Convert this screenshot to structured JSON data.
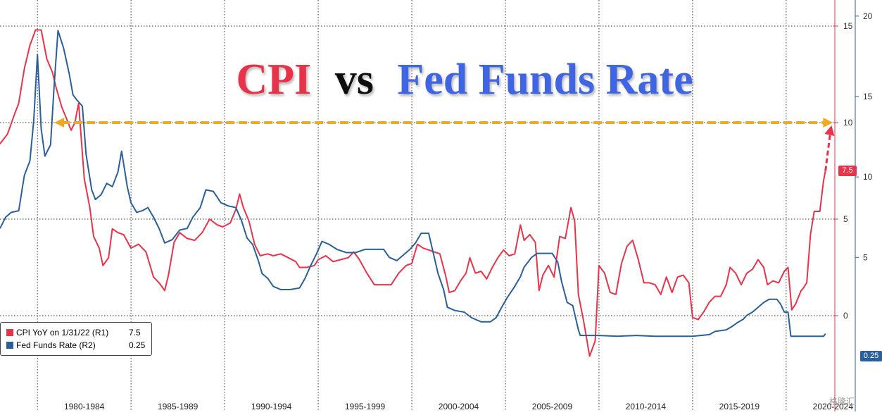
{
  "chart_data": {
    "type": "line",
    "title": {
      "part1": "CPI",
      "part2": "vs",
      "part3": "Fed Funds Rate"
    },
    "x_range": [
      1978.0,
      2022.6
    ],
    "x_tick_labels": [
      "1980-1984",
      "1985-1989",
      "1990-1994",
      "1995-1999",
      "2000-2004",
      "2005-2009",
      "2010-2014",
      "2015-2019",
      "2020-2024"
    ],
    "y_axis_r1": {
      "ticks": [
        0,
        5,
        10,
        15
      ],
      "ylim": [
        -3.65,
        16.35
      ],
      "label_side": "inner"
    },
    "y_axis_r2": {
      "ticks": [
        5,
        10,
        15,
        20
      ],
      "ylim": [
        -3,
        21
      ],
      "label_side": "outer"
    },
    "series": [
      {
        "name": "CPI YoY on 1/31/22 (R1)",
        "last_value": "7.5",
        "axis": "R1",
        "color": "#e8334a",
        "points": [
          [
            1978.0,
            8.9
          ],
          [
            1978.4,
            9.4
          ],
          [
            1978.8,
            10.5
          ],
          [
            1979.0,
            11.0
          ],
          [
            1979.3,
            12.8
          ],
          [
            1979.6,
            14.0
          ],
          [
            1979.9,
            14.8
          ],
          [
            1980.2,
            14.8
          ],
          [
            1980.5,
            13.3
          ],
          [
            1980.8,
            12.6
          ],
          [
            1981.0,
            11.8
          ],
          [
            1981.3,
            10.8
          ],
          [
            1981.6,
            10.1
          ],
          [
            1981.8,
            9.6
          ],
          [
            1982.0,
            10.0
          ],
          [
            1982.2,
            11.0
          ],
          [
            1982.5,
            7.1
          ],
          [
            1982.8,
            5.6
          ],
          [
            1983.0,
            4.1
          ],
          [
            1983.3,
            3.5
          ],
          [
            1983.5,
            2.6
          ],
          [
            1983.8,
            3.0
          ],
          [
            1984.0,
            4.5
          ],
          [
            1984.3,
            4.3
          ],
          [
            1984.6,
            4.2
          ],
          [
            1985.0,
            3.5
          ],
          [
            1985.4,
            3.7
          ],
          [
            1985.8,
            3.3
          ],
          [
            1986.2,
            2.0
          ],
          [
            1986.5,
            1.7
          ],
          [
            1986.8,
            1.3
          ],
          [
            1987.0,
            2.1
          ],
          [
            1987.3,
            3.8
          ],
          [
            1987.6,
            4.3
          ],
          [
            1988.0,
            4.0
          ],
          [
            1988.4,
            3.9
          ],
          [
            1988.8,
            4.3
          ],
          [
            1989.2,
            5.0
          ],
          [
            1989.6,
            4.7
          ],
          [
            1989.9,
            4.6
          ],
          [
            1990.3,
            4.8
          ],
          [
            1990.6,
            5.5
          ],
          [
            1990.8,
            6.3
          ],
          [
            1991.0,
            5.6
          ],
          [
            1991.3,
            4.9
          ],
          [
            1991.6,
            3.7
          ],
          [
            1991.9,
            3.1
          ],
          [
            1992.3,
            3.2
          ],
          [
            1992.6,
            3.1
          ],
          [
            1993.0,
            3.2
          ],
          [
            1993.4,
            3.0
          ],
          [
            1993.8,
            2.8
          ],
          [
            1994.0,
            2.5
          ],
          [
            1994.4,
            2.5
          ],
          [
            1994.8,
            2.6
          ],
          [
            1995.0,
            2.9
          ],
          [
            1995.4,
            3.1
          ],
          [
            1995.8,
            2.8
          ],
          [
            1996.2,
            2.9
          ],
          [
            1996.6,
            3.0
          ],
          [
            1996.9,
            3.3
          ],
          [
            1997.2,
            2.9
          ],
          [
            1997.6,
            2.2
          ],
          [
            1998.0,
            1.6
          ],
          [
            1998.5,
            1.6
          ],
          [
            1998.9,
            1.6
          ],
          [
            1999.3,
            2.2
          ],
          [
            1999.7,
            2.6
          ],
          [
            2000.0,
            2.7
          ],
          [
            2000.3,
            3.7
          ],
          [
            2000.6,
            3.5
          ],
          [
            2000.9,
            3.4
          ],
          [
            2001.2,
            3.3
          ],
          [
            2001.5,
            3.2
          ],
          [
            2001.8,
            2.1
          ],
          [
            2002.0,
            1.2
          ],
          [
            2002.3,
            1.3
          ],
          [
            2002.6,
            1.8
          ],
          [
            2002.9,
            2.2
          ],
          [
            2003.1,
            3.0
          ],
          [
            2003.4,
            2.2
          ],
          [
            2003.7,
            2.3
          ],
          [
            2004.0,
            1.9
          ],
          [
            2004.3,
            2.5
          ],
          [
            2004.6,
            3.0
          ],
          [
            2004.9,
            3.4
          ],
          [
            2005.2,
            3.1
          ],
          [
            2005.5,
            3.2
          ],
          [
            2005.8,
            4.7
          ],
          [
            2006.0,
            3.9
          ],
          [
            2006.3,
            4.2
          ],
          [
            2006.6,
            3.8
          ],
          [
            2006.8,
            1.3
          ],
          [
            2007.0,
            2.1
          ],
          [
            2007.3,
            2.6
          ],
          [
            2007.6,
            2.0
          ],
          [
            2007.9,
            4.1
          ],
          [
            2008.2,
            4.0
          ],
          [
            2008.5,
            5.6
          ],
          [
            2008.7,
            4.9
          ],
          [
            2008.9,
            1.1
          ],
          [
            2009.2,
            -0.4
          ],
          [
            2009.5,
            -2.1
          ],
          [
            2009.8,
            -1.3
          ],
          [
            2010.0,
            2.6
          ],
          [
            2010.3,
            2.2
          ],
          [
            2010.6,
            1.2
          ],
          [
            2010.9,
            1.1
          ],
          [
            2011.2,
            2.7
          ],
          [
            2011.5,
            3.6
          ],
          [
            2011.8,
            3.9
          ],
          [
            2012.1,
            2.9
          ],
          [
            2012.4,
            1.7
          ],
          [
            2012.7,
            1.7
          ],
          [
            2013.0,
            1.6
          ],
          [
            2013.3,
            1.1
          ],
          [
            2013.6,
            2.0
          ],
          [
            2013.9,
            1.2
          ],
          [
            2014.2,
            2.0
          ],
          [
            2014.5,
            2.1
          ],
          [
            2014.8,
            1.7
          ],
          [
            2015.0,
            -0.1
          ],
          [
            2015.3,
            -0.2
          ],
          [
            2015.6,
            0.2
          ],
          [
            2015.9,
            0.7
          ],
          [
            2016.2,
            1.0
          ],
          [
            2016.5,
            1.0
          ],
          [
            2016.8,
            1.6
          ],
          [
            2017.0,
            2.5
          ],
          [
            2017.3,
            2.2
          ],
          [
            2017.6,
            1.6
          ],
          [
            2017.9,
            2.2
          ],
          [
            2018.2,
            2.4
          ],
          [
            2018.5,
            2.9
          ],
          [
            2018.8,
            2.5
          ],
          [
            2019.0,
            1.6
          ],
          [
            2019.3,
            1.8
          ],
          [
            2019.6,
            1.7
          ],
          [
            2019.9,
            2.3
          ],
          [
            2020.1,
            2.5
          ],
          [
            2020.3,
            0.3
          ],
          [
            2020.5,
            0.6
          ],
          [
            2020.8,
            1.3
          ],
          [
            2020.9,
            1.4
          ],
          [
            2021.1,
            1.7
          ],
          [
            2021.3,
            4.2
          ],
          [
            2021.5,
            5.4
          ],
          [
            2021.8,
            5.4
          ],
          [
            2022.0,
            7.0
          ],
          [
            2022.1,
            7.5
          ]
        ]
      },
      {
        "name": "Fed Funds Rate (R2)",
        "last_value": "0.25",
        "axis": "R2",
        "color": "#2a6099",
        "points": [
          [
            1978.0,
            6.8
          ],
          [
            1978.3,
            7.5
          ],
          [
            1978.6,
            7.8
          ],
          [
            1979.0,
            7.9
          ],
          [
            1979.3,
            10.1
          ],
          [
            1979.6,
            11.0
          ],
          [
            1979.8,
            13.5
          ],
          [
            1980.0,
            17.6
          ],
          [
            1980.2,
            13.0
          ],
          [
            1980.4,
            11.3
          ],
          [
            1980.7,
            12.0
          ],
          [
            1980.9,
            15.8
          ],
          [
            1981.1,
            19.1
          ],
          [
            1981.4,
            18.0
          ],
          [
            1981.7,
            16.4
          ],
          [
            1981.9,
            15.1
          ],
          [
            1982.1,
            14.8
          ],
          [
            1982.4,
            14.4
          ],
          [
            1982.6,
            11.4
          ],
          [
            1982.9,
            9.2
          ],
          [
            1983.1,
            8.6
          ],
          [
            1983.4,
            8.9
          ],
          [
            1983.7,
            9.6
          ],
          [
            1984.0,
            9.4
          ],
          [
            1984.3,
            10.3
          ],
          [
            1984.5,
            11.6
          ],
          [
            1984.8,
            9.4
          ],
          [
            1985.0,
            8.4
          ],
          [
            1985.3,
            7.8
          ],
          [
            1985.6,
            7.9
          ],
          [
            1985.9,
            8.1
          ],
          [
            1986.2,
            7.5
          ],
          [
            1986.5,
            6.8
          ],
          [
            1986.8,
            5.9
          ],
          [
            1987.2,
            6.1
          ],
          [
            1987.6,
            6.7
          ],
          [
            1988.0,
            6.8
          ],
          [
            1988.3,
            7.5
          ],
          [
            1988.7,
            8.1
          ],
          [
            1989.0,
            9.2
          ],
          [
            1989.4,
            9.1
          ],
          [
            1989.8,
            8.4
          ],
          [
            1990.2,
            8.2
          ],
          [
            1990.6,
            8.1
          ],
          [
            1990.9,
            7.3
          ],
          [
            1991.2,
            6.2
          ],
          [
            1991.5,
            5.8
          ],
          [
            1991.8,
            4.8
          ],
          [
            1992.0,
            4.0
          ],
          [
            1992.3,
            3.7
          ],
          [
            1992.6,
            3.2
          ],
          [
            1993.0,
            3.0
          ],
          [
            1993.5,
            3.0
          ],
          [
            1994.0,
            3.1
          ],
          [
            1994.3,
            3.7
          ],
          [
            1994.6,
            4.5
          ],
          [
            1994.9,
            5.2
          ],
          [
            1995.2,
            6.0
          ],
          [
            1995.6,
            5.8
          ],
          [
            1996.0,
            5.5
          ],
          [
            1996.5,
            5.3
          ],
          [
            1997.0,
            5.3
          ],
          [
            1997.5,
            5.5
          ],
          [
            1998.0,
            5.5
          ],
          [
            1998.5,
            5.5
          ],
          [
            1998.8,
            5.0
          ],
          [
            1999.2,
            4.8
          ],
          [
            1999.6,
            5.2
          ],
          [
            1999.9,
            5.5
          ],
          [
            2000.2,
            5.9
          ],
          [
            2000.5,
            6.5
          ],
          [
            2000.9,
            6.5
          ],
          [
            2001.1,
            5.5
          ],
          [
            2001.4,
            4.0
          ],
          [
            2001.7,
            3.0
          ],
          [
            2001.9,
            1.9
          ],
          [
            2002.3,
            1.7
          ],
          [
            2002.8,
            1.6
          ],
          [
            2003.2,
            1.25
          ],
          [
            2003.7,
            1.0
          ],
          [
            2004.2,
            1.0
          ],
          [
            2004.5,
            1.25
          ],
          [
            2004.8,
            1.9
          ],
          [
            2005.1,
            2.5
          ],
          [
            2005.5,
            3.2
          ],
          [
            2005.8,
            3.8
          ],
          [
            2006.0,
            4.4
          ],
          [
            2006.4,
            5.0
          ],
          [
            2006.7,
            5.25
          ],
          [
            2007.0,
            5.25
          ],
          [
            2007.5,
            5.25
          ],
          [
            2007.8,
            4.7
          ],
          [
            2008.0,
            3.5
          ],
          [
            2008.3,
            2.2
          ],
          [
            2008.6,
            2.0
          ],
          [
            2008.9,
            0.5
          ],
          [
            2009.0,
            0.15
          ],
          [
            2009.5,
            0.15
          ],
          [
            2010.0,
            0.15
          ],
          [
            2011.0,
            0.1
          ],
          [
            2012.0,
            0.15
          ],
          [
            2013.0,
            0.1
          ],
          [
            2014.0,
            0.1
          ],
          [
            2015.0,
            0.1
          ],
          [
            2015.9,
            0.2
          ],
          [
            2016.2,
            0.4
          ],
          [
            2016.8,
            0.5
          ],
          [
            2017.1,
            0.7
          ],
          [
            2017.4,
            0.95
          ],
          [
            2017.7,
            1.15
          ],
          [
            2017.9,
            1.4
          ],
          [
            2018.2,
            1.6
          ],
          [
            2018.5,
            1.9
          ],
          [
            2018.8,
            2.2
          ],
          [
            2019.1,
            2.4
          ],
          [
            2019.5,
            2.4
          ],
          [
            2019.7,
            2.1
          ],
          [
            2019.9,
            1.6
          ],
          [
            2020.1,
            1.6
          ],
          [
            2020.25,
            0.1
          ],
          [
            2020.6,
            0.1
          ],
          [
            2021.0,
            0.1
          ],
          [
            2021.5,
            0.1
          ],
          [
            2022.0,
            0.1
          ],
          [
            2022.1,
            0.25
          ]
        ]
      }
    ],
    "annotation": {
      "type": "dashed-arrow",
      "from_x": 1980.9,
      "to_x": 2022.5,
      "y_r1": 10,
      "color": "#f2a91e",
      "up_arrow_color": "#e8334a"
    }
  },
  "legend": {
    "items": [
      {
        "label": "CPI YoY on 1/31/22 (R1)",
        "value": "7.5",
        "color": "#e8334a"
      },
      {
        "label": "Fed Funds Rate (R2)",
        "value": "0.25",
        "color": "#2a6099"
      }
    ]
  },
  "last_value_tags": {
    "cpi": "7.5",
    "ffr": "0.25"
  },
  "colors": {
    "cpi": "#e8334a",
    "ffr": "#2a6099",
    "arrow": "#f2a91e",
    "title_vs": "#111111"
  },
  "watermark": "格隆汇"
}
